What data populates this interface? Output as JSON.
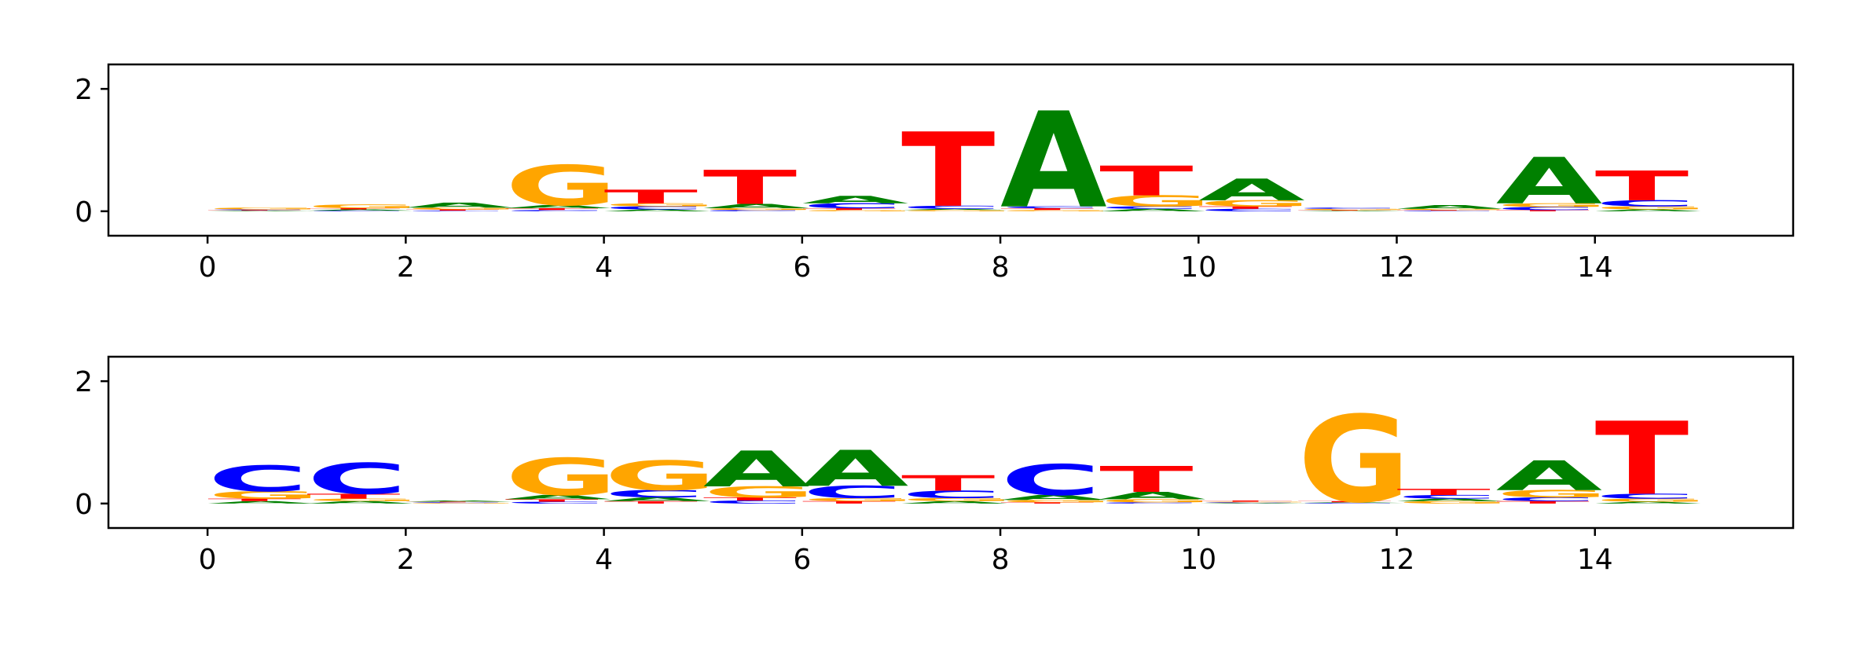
{
  "chart_data": [
    {
      "type": "sequence-logo",
      "x_ticks": [
        0,
        2,
        4,
        6,
        8,
        10,
        12,
        14
      ],
      "y_ticks": [
        0,
        2
      ],
      "xlim": [
        -1,
        16
      ],
      "ylim": [
        -0.4,
        2.4
      ],
      "colors": {
        "A": "#008000",
        "C": "#0000ff",
        "G": "#ffa500",
        "T": "#ff0000"
      },
      "positions": [
        {
          "x": 0,
          "letters": [
            {
              "b": "A",
              "h": 0.01
            },
            {
              "b": "T",
              "h": 0.01
            },
            {
              "b": "C",
              "h": 0.01
            },
            {
              "b": "G",
              "h": 0.03
            }
          ]
        },
        {
          "x": 1,
          "letters": [
            {
              "b": "C",
              "h": 0.01
            },
            {
              "b": "A",
              "h": 0.02
            },
            {
              "b": "T",
              "h": 0.02
            },
            {
              "b": "G",
              "h": 0.06
            }
          ]
        },
        {
          "x": 2,
          "letters": [
            {
              "b": "C",
              "h": 0.01
            },
            {
              "b": "T",
              "h": 0.02
            },
            {
              "b": "G",
              "h": 0.03
            },
            {
              "b": "A",
              "h": 0.08
            }
          ]
        },
        {
          "x": 3,
          "letters": [
            {
              "b": "C",
              "h": 0.02
            },
            {
              "b": "T",
              "h": 0.03
            },
            {
              "b": "A",
              "h": 0.05
            },
            {
              "b": "G",
              "h": 0.65
            }
          ]
        },
        {
          "x": 4,
          "letters": [
            {
              "b": "A",
              "h": 0.03
            },
            {
              "b": "C",
              "h": 0.05
            },
            {
              "b": "G",
              "h": 0.05
            },
            {
              "b": "T",
              "h": 0.22
            }
          ]
        },
        {
          "x": 5,
          "letters": [
            {
              "b": "C",
              "h": 0.02
            },
            {
              "b": "G",
              "h": 0.03
            },
            {
              "b": "A",
              "h": 0.07
            },
            {
              "b": "T",
              "h": 0.55
            }
          ]
        },
        {
          "x": 6,
          "letters": [
            {
              "b": "G",
              "h": 0.02
            },
            {
              "b": "T",
              "h": 0.03
            },
            {
              "b": "C",
              "h": 0.08
            },
            {
              "b": "A",
              "h": 0.12
            }
          ]
        },
        {
          "x": 7,
          "letters": [
            {
              "b": "G",
              "h": 0.02
            },
            {
              "b": "A",
              "h": 0.02
            },
            {
              "b": "C",
              "h": 0.05
            },
            {
              "b": "T",
              "h": 1.2
            }
          ]
        },
        {
          "x": 8,
          "letters": [
            {
              "b": "G",
              "h": 0.02
            },
            {
              "b": "T",
              "h": 0.03
            },
            {
              "b": "C",
              "h": 0.03
            },
            {
              "b": "A",
              "h": 1.55
            }
          ]
        },
        {
          "x": 9,
          "letters": [
            {
              "b": "A",
              "h": 0.04
            },
            {
              "b": "C",
              "h": 0.04
            },
            {
              "b": "G",
              "h": 0.18
            },
            {
              "b": "T",
              "h": 0.48
            }
          ]
        },
        {
          "x": 10,
          "letters": [
            {
              "b": "C",
              "h": 0.04
            },
            {
              "b": "T",
              "h": 0.04
            },
            {
              "b": "G",
              "h": 0.1
            },
            {
              "b": "A",
              "h": 0.35
            }
          ]
        },
        {
          "x": 11,
          "letters": [
            {
              "b": "A",
              "h": 0.01
            },
            {
              "b": "T",
              "h": 0.01
            },
            {
              "b": "G",
              "h": 0.02
            },
            {
              "b": "C",
              "h": 0.02
            }
          ]
        },
        {
          "x": 12,
          "letters": [
            {
              "b": "C",
              "h": 0.01
            },
            {
              "b": "T",
              "h": 0.01
            },
            {
              "b": "G",
              "h": 0.02
            },
            {
              "b": "A",
              "h": 0.06
            }
          ]
        },
        {
          "x": 13,
          "letters": [
            {
              "b": "T",
              "h": 0.02
            },
            {
              "b": "C",
              "h": 0.05
            },
            {
              "b": "G",
              "h": 0.06
            },
            {
              "b": "A",
              "h": 0.75
            }
          ]
        },
        {
          "x": 14,
          "letters": [
            {
              "b": "A",
              "h": 0.03
            },
            {
              "b": "G",
              "h": 0.05
            },
            {
              "b": "C",
              "h": 0.1
            },
            {
              "b": "T",
              "h": 0.48
            }
          ]
        }
      ]
    },
    {
      "type": "sequence-logo",
      "x_ticks": [
        0,
        2,
        4,
        6,
        8,
        10,
        12,
        14
      ],
      "y_ticks": [
        0,
        2
      ],
      "xlim": [
        -1,
        16
      ],
      "ylim": [
        -0.4,
        2.4
      ],
      "colors": {
        "A": "#008000",
        "C": "#0000ff",
        "G": "#ffa500",
        "T": "#ff0000"
      },
      "positions": [
        {
          "x": 0,
          "letters": [
            {
              "b": "A",
              "h": 0.04
            },
            {
              "b": "T",
              "h": 0.04
            },
            {
              "b": "G",
              "h": 0.12
            },
            {
              "b": "C",
              "h": 0.42
            }
          ]
        },
        {
          "x": 1,
          "letters": [
            {
              "b": "A",
              "h": 0.04
            },
            {
              "b": "G",
              "h": 0.04
            },
            {
              "b": "T",
              "h": 0.08
            },
            {
              "b": "C",
              "h": 0.5
            }
          ]
        },
        {
          "x": 2,
          "letters": [
            {
              "b": "G",
              "h": 0.01
            },
            {
              "b": "C",
              "h": 0.01
            },
            {
              "b": "T",
              "h": 0.01
            },
            {
              "b": "A",
              "h": 0.02
            }
          ]
        },
        {
          "x": 3,
          "letters": [
            {
              "b": "C",
              "h": 0.03
            },
            {
              "b": "T",
              "h": 0.04
            },
            {
              "b": "A",
              "h": 0.07
            },
            {
              "b": "G",
              "h": 0.6
            }
          ]
        },
        {
          "x": 4,
          "letters": [
            {
              "b": "T",
              "h": 0.04
            },
            {
              "b": "A",
              "h": 0.06
            },
            {
              "b": "C",
              "h": 0.12
            },
            {
              "b": "G",
              "h": 0.48
            }
          ]
        },
        {
          "x": 5,
          "letters": [
            {
              "b": "C",
              "h": 0.05
            },
            {
              "b": "T",
              "h": 0.05
            },
            {
              "b": "G",
              "h": 0.18
            },
            {
              "b": "A",
              "h": 0.58
            }
          ]
        },
        {
          "x": 6,
          "letters": [
            {
              "b": "T",
              "h": 0.04
            },
            {
              "b": "G",
              "h": 0.05
            },
            {
              "b": "C",
              "h": 0.2
            },
            {
              "b": "A",
              "h": 0.58
            }
          ]
        },
        {
          "x": 7,
          "letters": [
            {
              "b": "A",
              "h": 0.04
            },
            {
              "b": "G",
              "h": 0.05
            },
            {
              "b": "C",
              "h": 0.12
            },
            {
              "b": "T",
              "h": 0.25
            }
          ]
        },
        {
          "x": 8,
          "letters": [
            {
              "b": "T",
              "h": 0.02
            },
            {
              "b": "G",
              "h": 0.04
            },
            {
              "b": "A",
              "h": 0.08
            },
            {
              "b": "C",
              "h": 0.5
            }
          ]
        },
        {
          "x": 9,
          "letters": [
            {
              "b": "C",
              "h": 0.02
            },
            {
              "b": "G",
              "h": 0.05
            },
            {
              "b": "A",
              "h": 0.12
            },
            {
              "b": "T",
              "h": 0.42
            }
          ]
        },
        {
          "x": 10,
          "letters": [
            {
              "b": "A",
              "h": 0.01
            },
            {
              "b": "C",
              "h": 0.01
            },
            {
              "b": "G",
              "h": 0.01
            },
            {
              "b": "T",
              "h": 0.02
            }
          ]
        },
        {
          "x": 11,
          "letters": [
            {
              "b": "C",
              "h": 0.01
            },
            {
              "b": "A",
              "h": 0.01
            },
            {
              "b": "T",
              "h": 0.02
            },
            {
              "b": "G",
              "h": 1.4
            }
          ]
        },
        {
          "x": 12,
          "letters": [
            {
              "b": "G",
              "h": 0.04
            },
            {
              "b": "A",
              "h": 0.04
            },
            {
              "b": "C",
              "h": 0.06
            },
            {
              "b": "T",
              "h": 0.1
            }
          ]
        },
        {
          "x": 13,
          "letters": [
            {
              "b": "T",
              "h": 0.04
            },
            {
              "b": "C",
              "h": 0.06
            },
            {
              "b": "G",
              "h": 0.12
            },
            {
              "b": "A",
              "h": 0.48
            }
          ]
        },
        {
          "x": 14,
          "letters": [
            {
              "b": "A",
              "h": 0.03
            },
            {
              "b": "G",
              "h": 0.05
            },
            {
              "b": "C",
              "h": 0.08
            },
            {
              "b": "T",
              "h": 1.18
            }
          ]
        }
      ]
    }
  ]
}
